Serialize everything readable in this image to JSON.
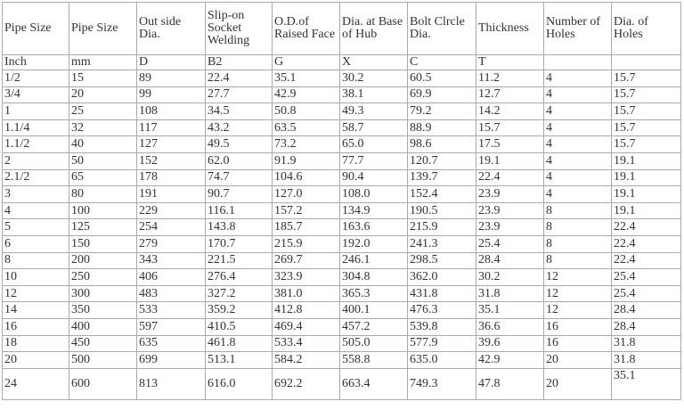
{
  "table": {
    "headers": [
      "Pipe Size",
      "Pipe Size",
      "Out side Dia.",
      "Slip-on Socket Welding",
      "O.D.of Raised Face",
      "Dia. at Base of Hub",
      "Bolt Clrcle Dia.",
      "Thickness",
      "Number of Holes",
      "Dia. of Holes"
    ],
    "units": [
      "Inch",
      "mm",
      "D",
      "B2",
      "G",
      "X",
      "C",
      "T"
    ],
    "rows": [
      [
        "1/2",
        "15",
        "89",
        "22.4",
        "35.1",
        "30.2",
        "60.5",
        "11.2",
        "4",
        "15.7"
      ],
      [
        "3/4",
        "20",
        "99",
        "27.7",
        "42.9",
        "38.1",
        "69.9",
        "12.7",
        "4",
        "15.7"
      ],
      [
        "1",
        "25",
        "108",
        "34.5",
        "50.8",
        "49.3",
        "79.2",
        "14.2",
        "4",
        "15.7"
      ],
      [
        "1.1/4",
        "32",
        "117",
        "43.2",
        "63.5",
        "58.7",
        "88.9",
        "15.7",
        "4",
        "15.7"
      ],
      [
        "1.1/2",
        "40",
        "127",
        "49.5",
        "73.2",
        "65.0",
        "98.6",
        "17.5",
        "4",
        "15.7"
      ],
      [
        "2",
        "50",
        "152",
        "62.0",
        "91.9",
        "77.7",
        "120.7",
        "19.1",
        "4",
        "19.1"
      ],
      [
        "2.1/2",
        "65",
        "178",
        "74.7",
        "104.6",
        "90.4",
        "139.7",
        "22.4",
        "4",
        "19.1"
      ],
      [
        "3",
        "80",
        "191",
        "90.7",
        "127.0",
        "108.0",
        "152.4",
        "23.9",
        "4",
        "19.1"
      ],
      [
        "4",
        "100",
        "229",
        "116.1",
        "157.2",
        "134.9",
        "190.5",
        "23.9",
        "8",
        "19.1"
      ],
      [
        "5",
        "125",
        "254",
        "143.8",
        "185.7",
        "163.6",
        "215.9",
        "23.9",
        "8",
        "22.4"
      ],
      [
        "6",
        "150",
        "279",
        "170.7",
        "215.9",
        "192.0",
        "241.3",
        "25.4",
        "8",
        "22.4"
      ],
      [
        "8",
        "200",
        "343",
        "221.5",
        "269.7",
        "246.1",
        "298.5",
        "28.4",
        "8",
        "22.4"
      ],
      [
        "10",
        "250",
        "406",
        "276.4",
        "323.9",
        "304.8",
        "362.0",
        "30.2",
        "12",
        "25.4"
      ],
      [
        "12",
        "300",
        "483",
        "327.2",
        "381.0",
        "365.3",
        "431.8",
        "31.8",
        "12",
        "25.4"
      ],
      [
        "14",
        "350",
        "533",
        "359.2",
        "412.8",
        "400.1",
        "476.3",
        "35.1",
        "12",
        "28.4"
      ],
      [
        "16",
        "400",
        "597",
        "410.5",
        "469.4",
        "457.2",
        "539.8",
        "36.6",
        "16",
        "28.4"
      ],
      [
        "18",
        "450",
        "635",
        "461.8",
        "533.4",
        "505.0",
        "577.9",
        "39.6",
        "16",
        "31.8"
      ],
      [
        "20",
        "500",
        "699",
        "513.1",
        "584.2",
        "558.8",
        "635.0",
        "42.9",
        "20",
        "31.8"
      ],
      [
        "24",
        "600",
        "813",
        "616.0",
        "692.2",
        "663.4",
        "749.3",
        "47.8",
        "20",
        "35.1"
      ]
    ]
  }
}
